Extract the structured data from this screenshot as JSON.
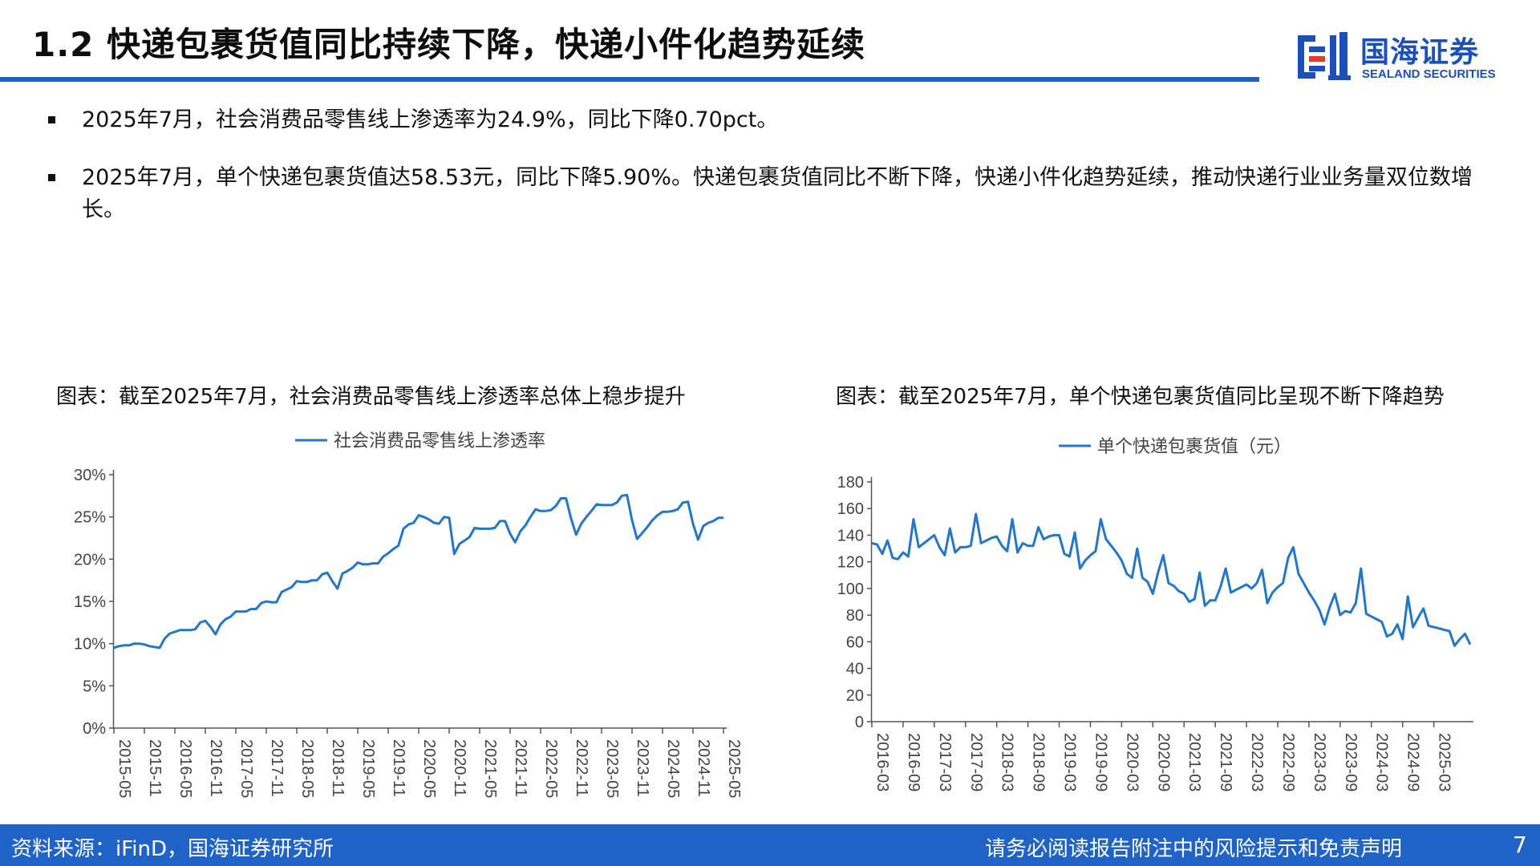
{
  "header": {
    "title": "1.2 快递包裹货值同比持续下降，快递小件化趋势延续",
    "logo_cn": "国海证券",
    "logo_en": "SEALAND SECURITIES"
  },
  "colors": {
    "brand_blue": "#1f63c6",
    "series_blue": "#2377c9",
    "logo_red": "#e23a2f"
  },
  "bullets": [
    "2025年7月，社会消费品零售线上渗透率为24.9%，同比下降0.70pct。",
    "2025年7月，单个快递包裹货值达58.53元，同比下降5.90%。快递包裹货值同比不断下降，快递小件化趋势延续，推动快递行业业务量双位数增长。"
  ],
  "charts": {
    "left_caption": "图表：截至2025年7月，社会消费品零售线上渗透率总体上稳步提升",
    "right_caption": "图表：截至2025年7月，单个快递包裹货值同比呈现不断下降趋势"
  },
  "chart_data": [
    {
      "type": "line",
      "legend": "社会消费品零售线上渗透率",
      "legend_position": "top-center",
      "grid": false,
      "x_start": "2015-05",
      "x_tick_labels": [
        "2015-05",
        "2015-11",
        "2016-05",
        "2016-11",
        "2017-05",
        "2017-11",
        "2018-05",
        "2018-11",
        "2019-05",
        "2019-11",
        "2020-05",
        "2020-11",
        "2021-05",
        "2021-11",
        "2022-05",
        "2022-11",
        "2023-05",
        "2023-11",
        "2024-05",
        "2024-11",
        "2025-05"
      ],
      "y_tick_labels": [
        "0%",
        "5%",
        "10%",
        "15%",
        "20%",
        "25%",
        "30%"
      ],
      "ylim": [
        0,
        30
      ],
      "unit": "%",
      "series": [
        {
          "name": "社会消费品零售线上渗透率",
          "values": [
            9.5,
            9.7,
            9.8,
            9.8,
            10.0,
            10.0,
            9.9,
            9.7,
            9.6,
            9.5,
            10.6,
            11.2,
            11.4,
            11.6,
            11.6,
            11.6,
            11.7,
            12.5,
            12.7,
            12.0,
            11.1,
            12.3,
            12.9,
            13.2,
            13.8,
            13.8,
            13.8,
            14.1,
            14.1,
            14.8,
            15.0,
            14.9,
            14.9,
            16.1,
            16.4,
            16.7,
            17.4,
            17.3,
            17.3,
            17.5,
            17.5,
            18.2,
            18.4,
            17.4,
            16.5,
            18.3,
            18.6,
            19.0,
            19.6,
            19.4,
            19.4,
            19.5,
            19.5,
            20.3,
            20.7,
            21.2,
            21.6,
            23.6,
            24.1,
            24.3,
            25.2,
            25.0,
            24.7,
            24.3,
            24.2,
            25.0,
            24.9,
            20.6,
            21.8,
            22.2,
            22.6,
            23.7,
            23.6,
            23.6,
            23.6,
            23.7,
            24.5,
            24.5,
            23.0,
            22.0,
            23.3,
            24.0,
            25.0,
            25.9,
            25.7,
            25.7,
            25.8,
            26.3,
            27.2,
            27.2,
            24.8,
            22.9,
            24.2,
            25.0,
            25.7,
            26.5,
            26.4,
            26.4,
            26.4,
            26.7,
            27.5,
            27.6,
            24.6,
            22.4,
            23.1,
            23.8,
            24.6,
            25.2,
            25.6,
            25.6,
            25.7,
            25.9,
            26.7,
            26.8,
            24.2,
            22.3,
            23.9,
            24.3,
            24.5,
            24.9,
            24.9
          ]
        }
      ]
    },
    {
      "type": "line",
      "legend": "单个快递包裹货值（元）",
      "legend_position": "top-center",
      "grid": false,
      "x_start": "2016-03",
      "x_tick_labels": [
        "2016-03",
        "2016-09",
        "2017-03",
        "2017-09",
        "2018-03",
        "2018-09",
        "2019-03",
        "2019-09",
        "2020-03",
        "2020-09",
        "2021-03",
        "2021-09",
        "2022-03",
        "2022-09",
        "2023-03",
        "2023-09",
        "2024-03",
        "2024-09",
        "2025-03"
      ],
      "y_tick_labels": [
        "0",
        "20",
        "40",
        "60",
        "80",
        "100",
        "120",
        "140",
        "160",
        "180"
      ],
      "ylim": [
        0,
        180
      ],
      "unit": "元",
      "series": [
        {
          "name": "单个快递包裹货值（元）",
          "values": [
            134,
            133,
            126,
            136,
            123,
            122,
            127,
            124,
            152,
            131,
            134,
            137,
            140,
            131,
            125,
            145,
            127,
            131,
            131,
            132,
            156,
            134,
            136,
            138,
            139,
            132,
            128,
            152,
            127,
            134,
            132,
            132,
            146,
            137,
            139,
            140,
            140,
            126,
            124,
            142,
            115,
            121,
            125,
            128,
            152,
            137,
            132,
            127,
            121,
            111,
            108,
            130,
            108,
            105,
            96,
            112,
            125,
            104,
            102,
            98,
            96,
            90,
            92,
            112,
            87,
            91,
            91,
            101,
            115,
            97,
            99,
            101,
            103,
            100,
            104,
            114,
            89,
            97,
            101,
            104,
            123,
            131,
            111,
            104,
            97,
            91,
            84,
            73,
            86,
            96,
            80,
            83,
            82,
            89,
            115,
            81,
            79,
            77,
            75,
            64,
            66,
            73,
            62,
            94,
            71,
            78,
            85,
            72,
            71,
            70,
            69,
            68,
            57,
            62,
            66,
            58
          ]
        }
      ]
    }
  ],
  "footer": {
    "source": "资料来源：iFinD，国海证券研究所",
    "disclaimer": "请务必阅读报告附注中的风险提示和免责声明",
    "page": "7"
  }
}
